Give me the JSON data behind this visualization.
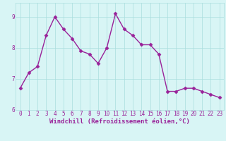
{
  "x": [
    0,
    1,
    2,
    3,
    4,
    5,
    6,
    7,
    8,
    9,
    10,
    11,
    12,
    13,
    14,
    15,
    16,
    17,
    18,
    19,
    20,
    21,
    22,
    23
  ],
  "y": [
    6.7,
    7.2,
    7.4,
    8.4,
    9.0,
    8.6,
    8.3,
    7.9,
    7.8,
    7.5,
    8.0,
    9.1,
    8.6,
    8.4,
    8.1,
    8.1,
    7.8,
    6.6,
    6.6,
    6.7,
    6.7,
    6.6,
    6.5,
    6.4
  ],
  "line_color": "#992299",
  "marker": "D",
  "markersize": 2.5,
  "linewidth": 1.0,
  "background_color": "#d8f5f5",
  "grid_color": "#aadddd",
  "xlabel": "Windchill (Refroidissement éolien,°C)",
  "xlabel_fontsize": 6.5,
  "xlabel_color": "#992299",
  "ytick_labels": [
    "6",
    "7",
    "8",
    "9"
  ],
  "ytick_values": [
    6,
    7,
    8,
    9
  ],
  "xtick_labels": [
    "0",
    "1",
    "2",
    "3",
    "4",
    "5",
    "6",
    "7",
    "8",
    "9",
    "10",
    "11",
    "12",
    "13",
    "14",
    "15",
    "16",
    "17",
    "18",
    "19",
    "20",
    "21",
    "22",
    "23"
  ],
  "ylim": [
    6.0,
    9.45
  ],
  "xlim": [
    -0.5,
    23.5
  ],
  "tick_fontsize": 5.5,
  "tick_color": "#992299"
}
